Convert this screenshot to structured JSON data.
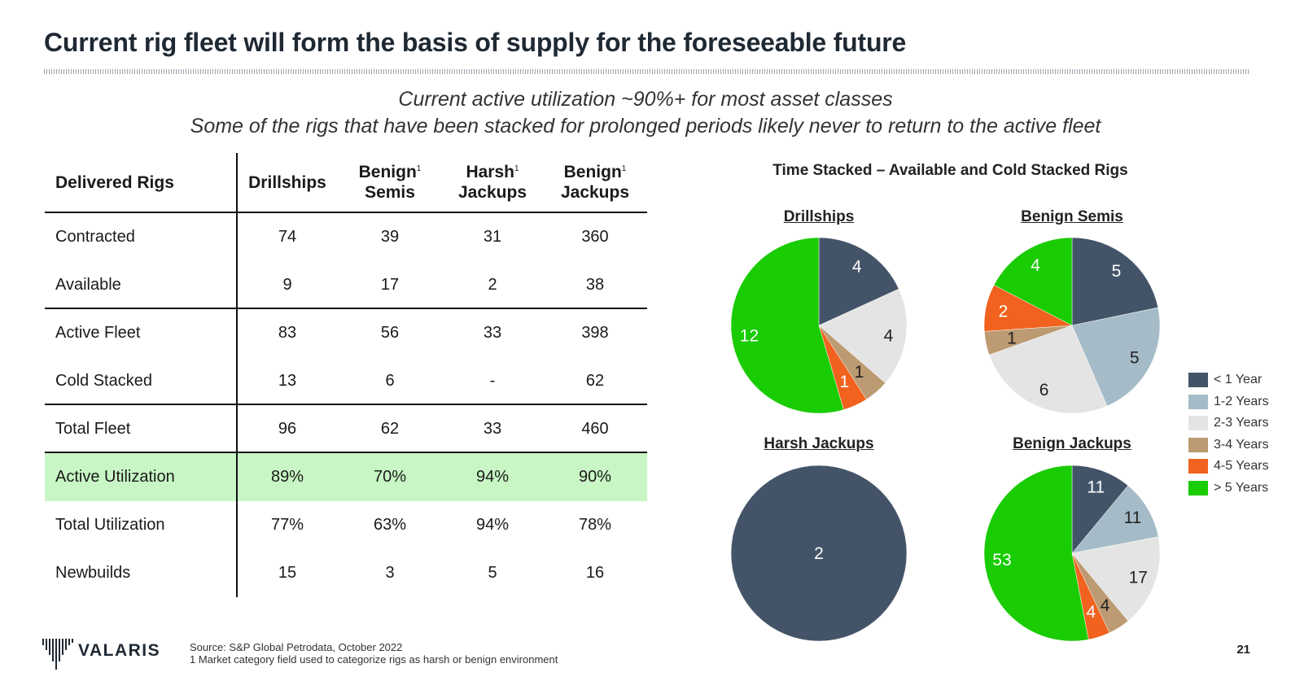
{
  "title": "Current rig fleet will form the basis of supply for the foreseeable future",
  "subtitle": [
    "Current active utilization ~90%+ for most asset classes",
    "Some of the rigs that have been stacked for prolonged periods likely never to return to the active fleet"
  ],
  "table": {
    "header": {
      "label": "Delivered Rigs",
      "columns": [
        {
          "line1": "Drillships",
          "line2": "",
          "sup": ""
        },
        {
          "line1": "Benign",
          "line2": "Semis",
          "sup": "1"
        },
        {
          "line1": "Harsh",
          "line2": "Jackups",
          "sup": "1"
        },
        {
          "line1": "Benign",
          "line2": "Jackups",
          "sup": "1"
        }
      ]
    },
    "rows": [
      {
        "label": "Contracted",
        "values": [
          "74",
          "39",
          "31",
          "360"
        ]
      },
      {
        "label": "Available",
        "values": [
          "9",
          "17",
          "2",
          "38"
        ]
      },
      {
        "label": "Active Fleet",
        "values": [
          "83",
          "56",
          "33",
          "398"
        ]
      },
      {
        "label": "Cold Stacked",
        "values": [
          "13",
          "6",
          "-",
          "62"
        ]
      },
      {
        "label": "Total Fleet",
        "values": [
          "96",
          "62",
          "33",
          "460"
        ]
      },
      {
        "label": "Active Utilization",
        "values": [
          "89%",
          "70%",
          "94%",
          "90%"
        ]
      },
      {
        "label": "Total Utilization",
        "values": [
          "77%",
          "63%",
          "94%",
          "78%"
        ]
      },
      {
        "label": "Newbuilds",
        "values": [
          "15",
          "3",
          "5",
          "16"
        ]
      }
    ]
  },
  "chart_data": {
    "type": "pie",
    "title": "Time Stacked – Available and Cold Stacked Rigs",
    "categories": [
      "< 1 Year",
      "1-2 Years",
      "2-3 Years",
      "3-4 Years",
      "4-5 Years",
      "> 5 Years"
    ],
    "colors": [
      "#445468",
      "#a5bcc8",
      "#e4e4e4",
      "#bc9a72",
      "#f0621e",
      "#19cc03"
    ],
    "label_colors": [
      "#ffffff",
      "#222222",
      "#222222",
      "#222222",
      "#ffffff",
      "#ffffff"
    ],
    "pies": [
      {
        "name": "Drillships",
        "values": [
          4,
          0,
          4,
          1,
          1,
          12
        ]
      },
      {
        "name": "Benign Semis",
        "values": [
          5,
          5,
          6,
          1,
          2,
          4
        ]
      },
      {
        "name": "Harsh Jackups",
        "values": [
          2,
          0,
          0,
          0,
          0,
          0
        ]
      },
      {
        "name": "Benign Jackups",
        "values": [
          11,
          11,
          17,
          4,
          4,
          53
        ]
      }
    ]
  },
  "footer": {
    "logo": "VALARIS",
    "source_line1": "Source: S&P Global Petrodata, October 2022",
    "source_line2": "1 Market category field used to categorize rigs as harsh or benign environment",
    "page_number": "21"
  }
}
